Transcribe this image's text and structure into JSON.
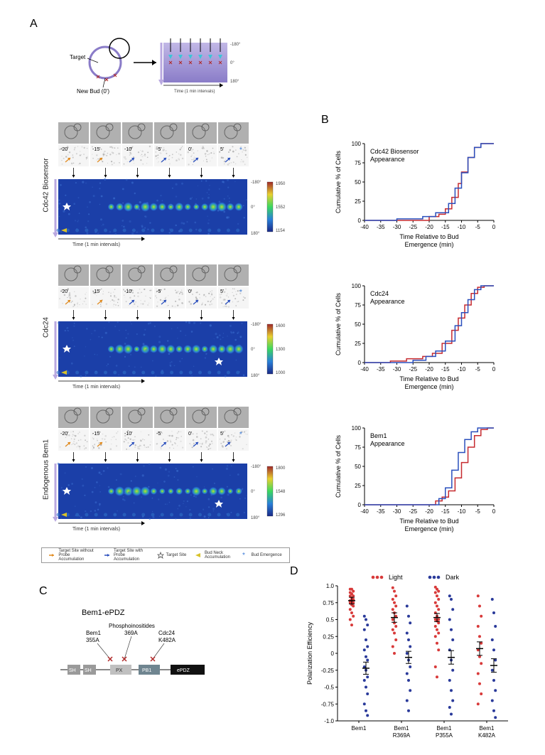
{
  "panels": {
    "A": "A",
    "B": "B",
    "C": "C",
    "D": "D"
  },
  "A": {
    "schematic": {
      "target_label": "Target",
      "newbud_label": "New Bud (0')",
      "time_axis": "Time (1 min intervals)",
      "deg_top": "-180°",
      "deg_mid": "0°",
      "deg_bot": "180°"
    },
    "blocks": [
      {
        "name": "Cdc42 Biosensor",
        "timepoints": [
          "-20'",
          "-15'",
          "-10'",
          "-5'",
          "0'",
          "5'"
        ],
        "colorbar": {
          "max": "1950",
          "mid": "1552",
          "min": "1154"
        },
        "deg_ticks": {
          "top": "-180°",
          "mid": "0°",
          "bot": "180°"
        },
        "xaxis": "Time (1 min intervals)"
      },
      {
        "name": "Cdc24",
        "timepoints": [
          "-20'",
          "-15'",
          "-10'",
          "-5'",
          "0'",
          "5'"
        ],
        "colorbar": {
          "max": "1600",
          "mid": "1300",
          "min": "1000"
        },
        "deg_ticks": {
          "top": "-180°",
          "mid": "0°",
          "bot": "180°"
        },
        "xaxis": "Time (1 min intervals)"
      },
      {
        "name": "Endogenous Bem1",
        "timepoints": [
          "-20'",
          "-15'",
          "-10'",
          "-5'",
          "0'",
          "5'"
        ],
        "colorbar": {
          "max": "1800",
          "mid": "1548",
          "min": "1296"
        },
        "deg_ticks": {
          "top": "-180°",
          "mid": "0°",
          "bot": "180°"
        },
        "xaxis": "Time (1 min intervals)"
      }
    ],
    "legend": {
      "item1": "Target Site without Probe Accumulation",
      "item2": "Target Site with Probe Accumulation",
      "item3": "Target Site",
      "item4": "Bud Neck Accumulation",
      "item5": "Bud Emergence"
    }
  },
  "B": {
    "charts": [
      {
        "title1": "Cdc42 Biosensor",
        "title2": "Appearance",
        "xlabel1": "Time Relative to Bud",
        "xlabel2": "Emergence (min)",
        "ylabel": "Cumulative % of Cells",
        "xlim": [
          -40,
          0
        ],
        "ylim": [
          0,
          100
        ],
        "xticks": [
          -40,
          -35,
          -30,
          -25,
          -20,
          -15,
          -10,
          -5,
          0
        ],
        "yticks": [
          0,
          25,
          50,
          75,
          100
        ],
        "xtick_visible": [
          "-40",
          "-35",
          "-30",
          "-25",
          "-20",
          "-15",
          "-10",
          "-5",
          "0"
        ],
        "ytick_visible": [
          "0",
          "25",
          "50",
          "75",
          "100"
        ],
        "series": [
          {
            "color": "#c62a2f",
            "points": [
              [
                -40,
                0
              ],
              [
                -35,
                0
              ],
              [
                -20,
                5
              ],
              [
                -17,
                8
              ],
              [
                -15,
                15
              ],
              [
                -13,
                30
              ],
              [
                -11,
                48
              ],
              [
                -10,
                63
              ],
              [
                -8,
                82
              ],
              [
                -6,
                95
              ],
              [
                -4,
                100
              ],
              [
                0,
                100
              ]
            ]
          },
          {
            "color": "#2a4fbd",
            "points": [
              [
                -40,
                0
              ],
              [
                -30,
                2
              ],
              [
                -22,
                5
              ],
              [
                -18,
                10
              ],
              [
                -14,
                22
              ],
              [
                -12,
                42
              ],
              [
                -10,
                62
              ],
              [
                -8,
                82
              ],
              [
                -6,
                95
              ],
              [
                -4,
                100
              ],
              [
                0,
                100
              ]
            ]
          }
        ]
      },
      {
        "title1": "Cdc24",
        "title2": "Appearance",
        "xlabel1": "Time Relative to Bud",
        "xlabel2": "Emergence (min)",
        "ylabel": "Cumulative % of Cells",
        "xlim": [
          -40,
          0
        ],
        "ylim": [
          0,
          100
        ],
        "xticks": [
          -40,
          -35,
          -30,
          -25,
          -20,
          -15,
          -10,
          -5,
          0
        ],
        "yticks": [
          0,
          25,
          50,
          75,
          100
        ],
        "xtick_visible": [
          "-40",
          "-35",
          "-30",
          "-25",
          "-20",
          "-15",
          "-10",
          "-5",
          "0"
        ],
        "ytick_visible": [
          "0",
          "25",
          "50",
          "75",
          "100"
        ],
        "series": [
          {
            "color": "#c62a2f",
            "points": [
              [
                -40,
                0
              ],
              [
                -32,
                2
              ],
              [
                -27,
                5
              ],
              [
                -22,
                8
              ],
              [
                -19,
                12
              ],
              [
                -16,
                25
              ],
              [
                -13,
                42
              ],
              [
                -11,
                58
              ],
              [
                -9,
                75
              ],
              [
                -7,
                90
              ],
              [
                -5,
                98
              ],
              [
                -3,
                100
              ],
              [
                0,
                100
              ]
            ]
          },
          {
            "color": "#2a4fbd",
            "points": [
              [
                -40,
                0
              ],
              [
                -30,
                0
              ],
              [
                -25,
                3
              ],
              [
                -21,
                8
              ],
              [
                -18,
                15
              ],
              [
                -15,
                28
              ],
              [
                -12,
                48
              ],
              [
                -10,
                65
              ],
              [
                -8,
                82
              ],
              [
                -6,
                95
              ],
              [
                -4,
                100
              ],
              [
                0,
                100
              ]
            ]
          }
        ]
      },
      {
        "title1": "Bem1",
        "title2": "Appearance",
        "xlabel1": "Time Relative to Bud",
        "xlabel2": "Emergence (min)",
        "ylabel": "Cumulative % of Cells",
        "xlim": [
          -40,
          0
        ],
        "ylim": [
          0,
          100
        ],
        "xticks": [
          -40,
          -35,
          -30,
          -25,
          -20,
          -15,
          -10,
          -5,
          0
        ],
        "yticks": [
          0,
          25,
          50,
          75,
          100
        ],
        "xtick_visible": [
          "-40",
          "-35",
          "-30",
          "-25",
          "-20",
          "-15",
          "-10",
          "-5",
          "0"
        ],
        "ytick_visible": [
          "0",
          "25",
          "50",
          "75",
          "100"
        ],
        "series": [
          {
            "color": "#c62a2f",
            "points": [
              [
                -40,
                0
              ],
              [
                -20,
                0
              ],
              [
                -18,
                5
              ],
              [
                -16,
                10
              ],
              [
                -14,
                18
              ],
              [
                -12,
                35
              ],
              [
                -10,
                55
              ],
              [
                -8,
                75
              ],
              [
                -6,
                90
              ],
              [
                -4,
                98
              ],
              [
                -2,
                100
              ],
              [
                0,
                100
              ]
            ]
          },
          {
            "color": "#2a4fbd",
            "points": [
              [
                -40,
                0
              ],
              [
                -20,
                0
              ],
              [
                -17,
                8
              ],
              [
                -15,
                22
              ],
              [
                -13,
                45
              ],
              [
                -11,
                68
              ],
              [
                -9,
                85
              ],
              [
                -7,
                95
              ],
              [
                -5,
                100
              ],
              [
                0,
                100
              ]
            ]
          }
        ]
      }
    ]
  },
  "C": {
    "title": "Bem1-ePDZ",
    "labels": {
      "bem1": "Bem1",
      "bem1_mut": "355A",
      "phospho": "Phosphoinositides",
      "phospho_mut": "369A",
      "cdc24": "Cdc24",
      "cdc24_mut": "K482A"
    },
    "domains": {
      "sh1": "SH",
      "sh2": "SH",
      "px": "PX",
      "pb1": "PB1",
      "epdz": "ePDZ"
    },
    "colors": {
      "sh": "#9a9a9a",
      "px": "#c0c0c0",
      "pb1": "#6f8590",
      "epdz": "#111111",
      "connector": "#888",
      "x": "#b02a2a"
    }
  },
  "D": {
    "legend": {
      "light": "Light",
      "dark": "Dark"
    },
    "ylabel": "Polarization Efficiency",
    "ylim": [
      -1.0,
      1.0
    ],
    "yticks": [
      -1.0,
      -0.75,
      -0.5,
      -0.25,
      0,
      0.25,
      0.5,
      0.75,
      1.0
    ],
    "ytick_labels": [
      "-1.0",
      "-0.75",
      "-0.5",
      "-0.25",
      "0",
      "0.25",
      "0.5",
      "0.75",
      "1.0"
    ],
    "categories": [
      "Bem1",
      "Bem1\nR369A",
      "Bem1\nP355A",
      "Bem1\nK482A"
    ],
    "colors": {
      "light": "#d83a3a",
      "dark": "#2a3a9a"
    },
    "data": {
      "Bem1": {
        "light": {
          "mean": 0.78,
          "sem": 0.05,
          "points": [
            0.95,
            0.95,
            0.92,
            0.9,
            0.88,
            0.85,
            0.85,
            0.82,
            0.8,
            0.78,
            0.78,
            0.75,
            0.75,
            0.72,
            0.7,
            0.65,
            0.6,
            0.55,
            0.5,
            0.42
          ]
        },
        "dark": {
          "mean": -0.22,
          "sem": 0.09,
          "points": [
            0.55,
            0.5,
            0.42,
            0.35,
            0.2,
            0.1,
            0.05,
            -0.05,
            -0.1,
            -0.2,
            -0.25,
            -0.35,
            -0.4,
            -0.5,
            -0.6,
            -0.75,
            -0.85,
            -0.92
          ]
        }
      },
      "Bem1\nR369A": {
        "light": {
          "mean": 0.53,
          "sem": 0.07,
          "points": [
            0.97,
            0.92,
            0.85,
            0.8,
            0.75,
            0.7,
            0.65,
            0.6,
            0.55,
            0.5,
            0.45,
            0.4,
            0.35,
            0.3,
            0.2,
            0.1,
            0.0
          ]
        },
        "dark": {
          "mean": -0.06,
          "sem": 0.09,
          "points": [
            0.7,
            0.55,
            0.45,
            0.3,
            0.2,
            0.1,
            0.0,
            -0.1,
            -0.2,
            -0.3,
            -0.4,
            -0.55,
            -0.7,
            -0.85
          ]
        }
      },
      "Bem1\nP355A": {
        "light": {
          "mean": 0.53,
          "sem": 0.06,
          "points": [
            0.98,
            0.95,
            0.92,
            0.9,
            0.85,
            0.8,
            0.75,
            0.7,
            0.65,
            0.6,
            0.55,
            0.5,
            0.5,
            0.48,
            0.45,
            0.4,
            0.35,
            0.3,
            0.25,
            0.15,
            0.05,
            -0.2,
            -0.35
          ]
        },
        "dark": {
          "mean": -0.06,
          "sem": 0.1,
          "points": [
            0.85,
            0.8,
            0.65,
            0.5,
            0.35,
            0.2,
            0.05,
            -0.1,
            -0.25,
            -0.4,
            -0.55,
            -0.7,
            -0.8,
            -0.9
          ]
        }
      },
      "Bem1\nK482A": {
        "light": {
          "mean": 0.07,
          "sem": 0.1,
          "points": [
            0.85,
            0.7,
            0.55,
            0.4,
            0.25,
            0.15,
            0.05,
            -0.05,
            -0.15,
            -0.3,
            -0.45,
            -0.6,
            -0.75
          ]
        },
        "dark": {
          "mean": -0.18,
          "sem": 0.1,
          "points": [
            0.8,
            0.6,
            0.4,
            0.2,
            0.05,
            -0.1,
            -0.25,
            -0.4,
            -0.55,
            -0.7,
            -0.85,
            -0.95
          ]
        }
      }
    }
  },
  "style": {
    "background": "#ffffff",
    "label_fontsize": 16,
    "body_fontsize": 10,
    "axis_fontsize": 9
  }
}
